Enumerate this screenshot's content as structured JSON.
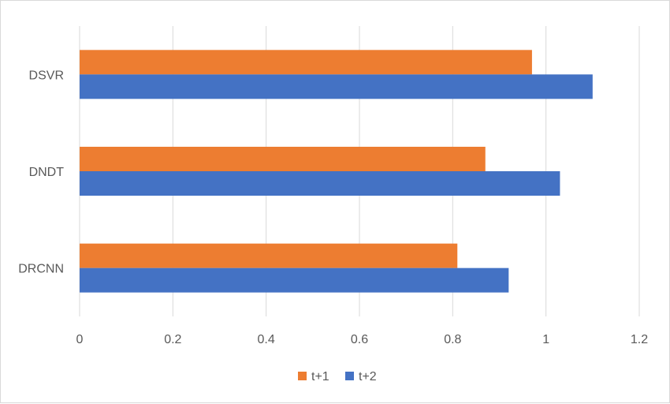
{
  "chart_data": {
    "type": "bar",
    "orientation": "horizontal",
    "categories": [
      "DSVR",
      "DNDT",
      "DRCNN"
    ],
    "series": [
      {
        "name": "t+1",
        "color": "#ED7D31",
        "values": [
          0.97,
          0.87,
          0.81
        ]
      },
      {
        "name": "t+2",
        "color": "#4472C4",
        "values": [
          1.1,
          1.03,
          0.92
        ]
      }
    ],
    "xlim": [
      0,
      1.2
    ],
    "x_ticks": [
      "0",
      "0.2",
      "0.4",
      "0.6",
      "0.8",
      "1",
      "1.2"
    ],
    "title": "",
    "xlabel": "",
    "ylabel": "",
    "grid": "vertical",
    "legend": "bottom-center"
  }
}
